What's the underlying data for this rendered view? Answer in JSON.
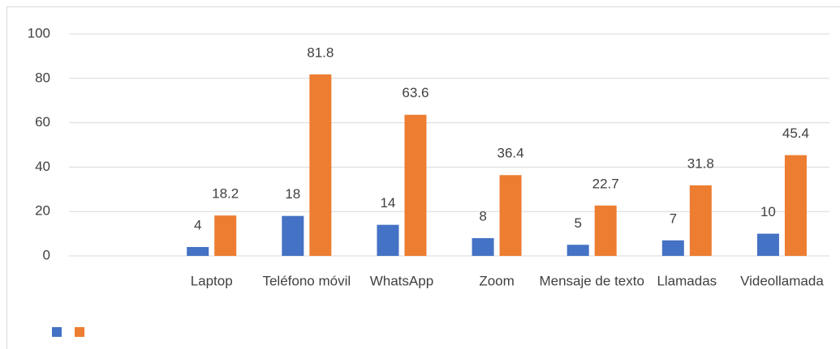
{
  "chart_data": {
    "type": "bar",
    "categories": [
      null,
      "Laptop",
      "Teléfono móvil",
      "WhatsApp",
      "Zoom",
      "Mensaje de texto",
      "Llamadas",
      "Videollamada"
    ],
    "series": [
      {
        "color": "#4472c4",
        "values": [
          null,
          4,
          18,
          14,
          8,
          5,
          7,
          10
        ]
      },
      {
        "color": "#ed7d31",
        "values": [
          null,
          18.2,
          81.8,
          63.6,
          36.4,
          22.7,
          31.8,
          45.4
        ]
      }
    ],
    "ylim": [
      0,
      100
    ],
    "yticks": [
      0,
      20,
      40,
      60,
      80,
      100
    ],
    "grid": true,
    "legend": "bottom-left"
  }
}
